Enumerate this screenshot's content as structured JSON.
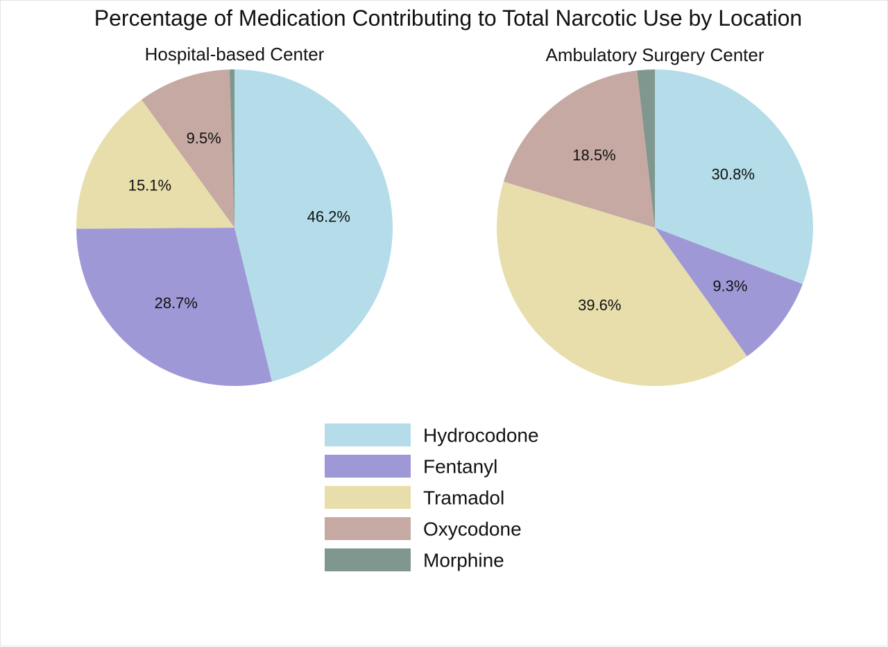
{
  "chart_data": {
    "type": "pie",
    "title": "Percentage of Medication Contributing to Total Narcotic Use by Location",
    "categories": [
      "Hydrocodone",
      "Fentanyl",
      "Tramadol",
      "Oxycodone",
      "Morphine"
    ],
    "colors": {
      "Hydrocodone": "#b4dde9",
      "Fentanyl": "#9f98d6",
      "Tramadol": "#e8deab",
      "Oxycodone": "#c6a9a3",
      "Morphine": "#7f978e"
    },
    "legend_position": "bottom-center",
    "pies": [
      {
        "title": "Hospital-based Center",
        "values": [
          46.2,
          28.7,
          15.1,
          9.5,
          0.5
        ],
        "labels": [
          "46.2%",
          "28.7%",
          "15.1%",
          "9.5%",
          ""
        ]
      },
      {
        "title": "Ambulatory Surgery Center",
        "values": [
          30.8,
          9.3,
          39.6,
          18.5,
          1.8
        ],
        "labels": [
          "30.8%",
          "9.3%",
          "39.6%",
          "18.5%",
          ""
        ]
      }
    ]
  }
}
